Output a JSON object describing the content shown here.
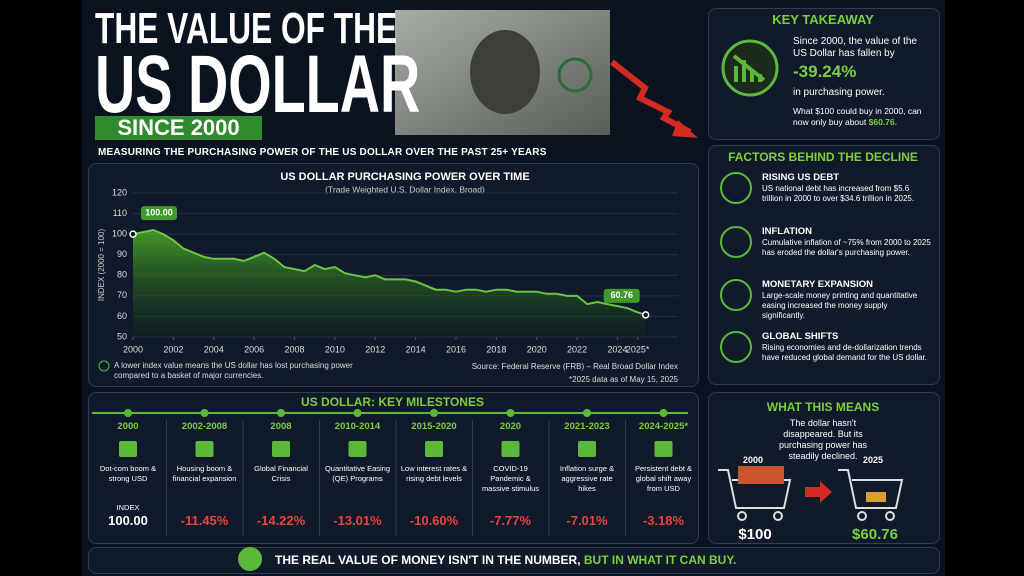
{
  "header": {
    "line1": "THE VALUE OF THE",
    "line2": "US DOLLAR",
    "badge": "SINCE 2000",
    "subtitle": "MEASURING THE PURCHASING POWER OF THE US DOLLAR OVER THE PAST 25+ YEARS"
  },
  "chart_data": {
    "type": "line",
    "title": "US DOLLAR PURCHASING POWER OVER TIME",
    "subtitle": "(Trade Weighted U.S. Dollar Index, Broad)",
    "y_label": "INDEX (2000 = 100)",
    "color": "#6cc644",
    "grid": true,
    "x": [
      2000,
      2000.5,
      2001,
      2001.5,
      2002,
      2002.5,
      2003,
      2003.5,
      2004,
      2004.5,
      2005,
      2005.5,
      2006,
      2006.5,
      2007,
      2007.5,
      2008,
      2008.5,
      2009,
      2009.5,
      2010,
      2010.5,
      2011,
      2011.5,
      2012,
      2012.5,
      2013,
      2013.5,
      2014,
      2014.5,
      2015,
      2015.5,
      2016,
      2016.5,
      2017,
      2017.5,
      2018,
      2018.5,
      2019,
      2019.5,
      2020,
      2020.5,
      2021,
      2021.5,
      2022,
      2022.5,
      2023,
      2023.5,
      2024,
      2024.5,
      2025,
      2025.4
    ],
    "values": [
      100,
      101,
      102,
      100,
      97,
      93,
      91,
      89,
      88,
      88,
      88,
      87,
      89,
      91,
      88,
      84,
      83,
      82,
      85,
      83,
      84,
      81,
      80,
      79,
      80,
      78,
      78,
      78,
      77,
      75,
      73,
      73,
      72,
      73,
      73,
      72,
      73,
      73,
      72,
      72,
      72,
      71,
      71,
      70,
      70,
      66,
      67,
      66,
      65,
      64,
      62,
      60.76
    ],
    "xlim": [
      2000,
      2027
    ],
    "xticks": [
      2000,
      2002,
      2004,
      2006,
      2008,
      2010,
      2012,
      2014,
      2016,
      2018,
      2020,
      2022,
      2024,
      {
        "value": 2025,
        "label": "2025*"
      }
    ],
    "ylim": [
      50,
      120
    ],
    "yticks": [
      50,
      60,
      70,
      80,
      90,
      100,
      110,
      120
    ],
    "annotations": [
      {
        "x": 2000,
        "y": 100,
        "label": "100.00"
      },
      {
        "x": 2025.4,
        "y": 60.76,
        "label": "60.76"
      }
    ],
    "note": "A lower index value means the US dollar has lost purchasing power compared to a basket of major currencies.",
    "source": "Source: Federal Reserve (FRB) – Real Broad Dollar Index",
    "footnote": "*2025 data as of May 15, 2025"
  },
  "takeaway": {
    "title": "KEY TAKEAWAY",
    "text1": "Since 2000, the value of the US Dollar has fallen by",
    "highlight": "-39.24%",
    "text2": "in purchasing power.",
    "text3": "What $100 could buy in 2000, can now only buy about",
    "amount": "$60.76."
  },
  "factors": {
    "title": "FACTORS BEHIND THE DECLINE",
    "items": [
      {
        "title": "RISING US DEBT",
        "text": "US national debt has increased from $5.6 trillion in 2000 to over $34.6 trillion in 2025."
      },
      {
        "title": "INFLATION",
        "text": "Cumulative inflation of ~75% from 2000 to 2025 has eroded the dollar's purchasing power."
      },
      {
        "title": "MONETARY EXPANSION",
        "text": "Large-scale money printing and quantitative easing increased the money supply significantly."
      },
      {
        "title": "GLOBAL SHIFTS",
        "text": "Rising economies and de-dollarization trends have reduced global demand for the US dollar."
      }
    ]
  },
  "milestones": {
    "title": "US DOLLAR: KEY MILESTONES",
    "items": [
      {
        "period": "2000",
        "text": "Dot-com boom & strong USD",
        "label": "INDEX",
        "change": "100.00"
      },
      {
        "period": "2002-2008",
        "text": "Housing boom & financial expansion",
        "change": "-11.45%"
      },
      {
        "period": "2008",
        "text": "Global Financial Crisis",
        "change": "-14.22%"
      },
      {
        "period": "2010-2014",
        "text": "Quantitative Easing (QE) Programs",
        "change": "-13.01%"
      },
      {
        "period": "2015-2020",
        "text": "Low interest rates & rising debt levels",
        "change": "-10.60%"
      },
      {
        "period": "2020",
        "text": "COVID-19 Pandemic & massive stimulus",
        "change": "-7.77%"
      },
      {
        "period": "2021-2023",
        "text": "Inflation surge & aggressive rate hikes",
        "change": "-7.01%"
      },
      {
        "period": "2024-2025*",
        "text": "Persistent debt & global shift away from USD",
        "change": "-3.18%"
      }
    ]
  },
  "meaning": {
    "title": "WHAT THIS MEANS",
    "text": "The dollar hasn't disappeared. But its purchasing power has steadily declined.",
    "year1": "2000",
    "year2": "2025",
    "amount1": "$100",
    "amount2": "$60.76"
  },
  "footer": {
    "text1": "THE REAL VALUE OF MONEY ISN'T IN THE NUMBER,",
    "text2": "BUT IN WHAT IT CAN BUY."
  }
}
